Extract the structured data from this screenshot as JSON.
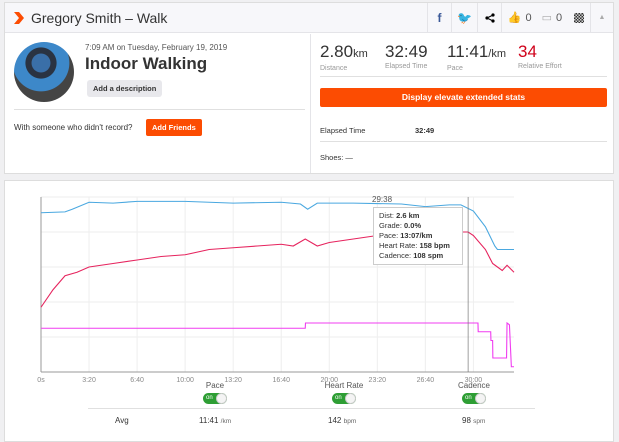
{
  "header": {
    "title": "Gregory Smith – Walk",
    "kudos_count": "0",
    "comment_count": "0",
    "icons": [
      "strava-logo-icon",
      "facebook-icon",
      "twitter-icon",
      "share-icon",
      "thumbs-up-icon",
      "comment-icon",
      "qr-code-icon",
      "collapse-icon"
    ]
  },
  "activity": {
    "datetime": "7:09 AM on Tuesday, February 19, 2019",
    "name": "Indoor Walking",
    "add_description": "Add a description",
    "friends_prompt": "With someone who didn't record?",
    "add_friends": "Add Friends"
  },
  "stats": [
    {
      "value": "2.80",
      "unit": "km",
      "label": "Distance"
    },
    {
      "value": "32:49",
      "unit": "",
      "label": "Elapsed Time"
    },
    {
      "value": "11:41",
      "unit": "/km",
      "label": "Pace"
    },
    {
      "value": "34",
      "unit": "",
      "label": "Relative Effort",
      "color": "#d0021b"
    }
  ],
  "elevate_button": "Display elevate extended stats",
  "details": {
    "elapsed_label": "Elapsed Time",
    "elapsed_value": "32:49",
    "shoes": "Shoes: —"
  },
  "chart_data": {
    "type": "line",
    "grid": true,
    "xlabel": "",
    "ylabel": "",
    "x_ticks": [
      "0s",
      "3:20",
      "6:40",
      "10:00",
      "13:20",
      "16:40",
      "20:00",
      "23:20",
      "26:40",
      "30:00"
    ],
    "xlim_seconds": [
      0,
      1969
    ],
    "y_scale_note": "no y-axis labels shown; y values are relative 0-1 of plot height",
    "series": [
      {
        "key": "pace",
        "color": "#4aa8e0",
        "x": [
          0,
          100,
          130,
          200,
          300,
          400,
          600,
          800,
          1000,
          1080,
          1110,
          1150,
          1300,
          1500,
          1600,
          1700,
          1748,
          1800,
          1850,
          1889,
          1900,
          1969
        ],
        "y": [
          0.91,
          0.915,
          0.93,
          0.97,
          0.965,
          0.975,
          0.975,
          0.965,
          0.97,
          0.96,
          0.93,
          0.965,
          0.965,
          0.96,
          0.945,
          0.955,
          0.955,
          0.92,
          0.83,
          0.72,
          0.7,
          0.7
        ]
      },
      {
        "key": "heart_rate",
        "color": "#e6245e",
        "x": [
          0,
          50,
          100,
          150,
          200,
          300,
          400,
          500,
          600,
          700,
          800,
          900,
          1000,
          1050,
          1100,
          1150,
          1200,
          1300,
          1400,
          1500,
          1600,
          1700,
          1778,
          1800,
          1850,
          1880,
          1920,
          1940,
          1969
        ],
        "y": [
          0.37,
          0.47,
          0.55,
          0.57,
          0.6,
          0.62,
          0.64,
          0.66,
          0.67,
          0.7,
          0.71,
          0.72,
          0.73,
          0.72,
          0.76,
          0.72,
          0.74,
          0.76,
          0.78,
          0.77,
          0.79,
          0.8,
          0.8,
          0.78,
          0.7,
          0.62,
          0.58,
          0.61,
          0.57
        ]
      },
      {
        "key": "cadence",
        "color": "#f03cf0",
        "x": [
          0,
          1100,
          1101,
          1819,
          1820,
          1872,
          1873,
          1880,
          1881,
          1938,
          1940,
          1950,
          1958,
          1969
        ],
        "y": [
          0.25,
          0.25,
          0.28,
          0.28,
          0.23,
          0.23,
          0.18,
          0.18,
          0.08,
          0.08,
          0.28,
          0.27,
          0.03,
          0.03
        ]
      }
    ],
    "cursor": {
      "time": "29:38",
      "seconds": 1778
    }
  },
  "tooltip": {
    "time": "29:38",
    "rows": [
      {
        "label": "Dist: ",
        "value": "2.6 km"
      },
      {
        "label": "Grade: ",
        "value": "0.0%"
      },
      {
        "label": "Pace: ",
        "value": "13:07/km"
      },
      {
        "label": "Heart Rate: ",
        "value": "158 bpm"
      },
      {
        "label": "Cadence: ",
        "value": "108 spm"
      }
    ]
  },
  "legend": [
    {
      "label": "Pace",
      "toggle": "on",
      "avg": "11:41",
      "unit": "/km"
    },
    {
      "label": "Heart Rate",
      "toggle": "on",
      "avg": "142",
      "unit": "bpm"
    },
    {
      "label": "Cadence",
      "toggle": "on",
      "avg": "98",
      "unit": "spm"
    }
  ],
  "avg_label": "Avg"
}
